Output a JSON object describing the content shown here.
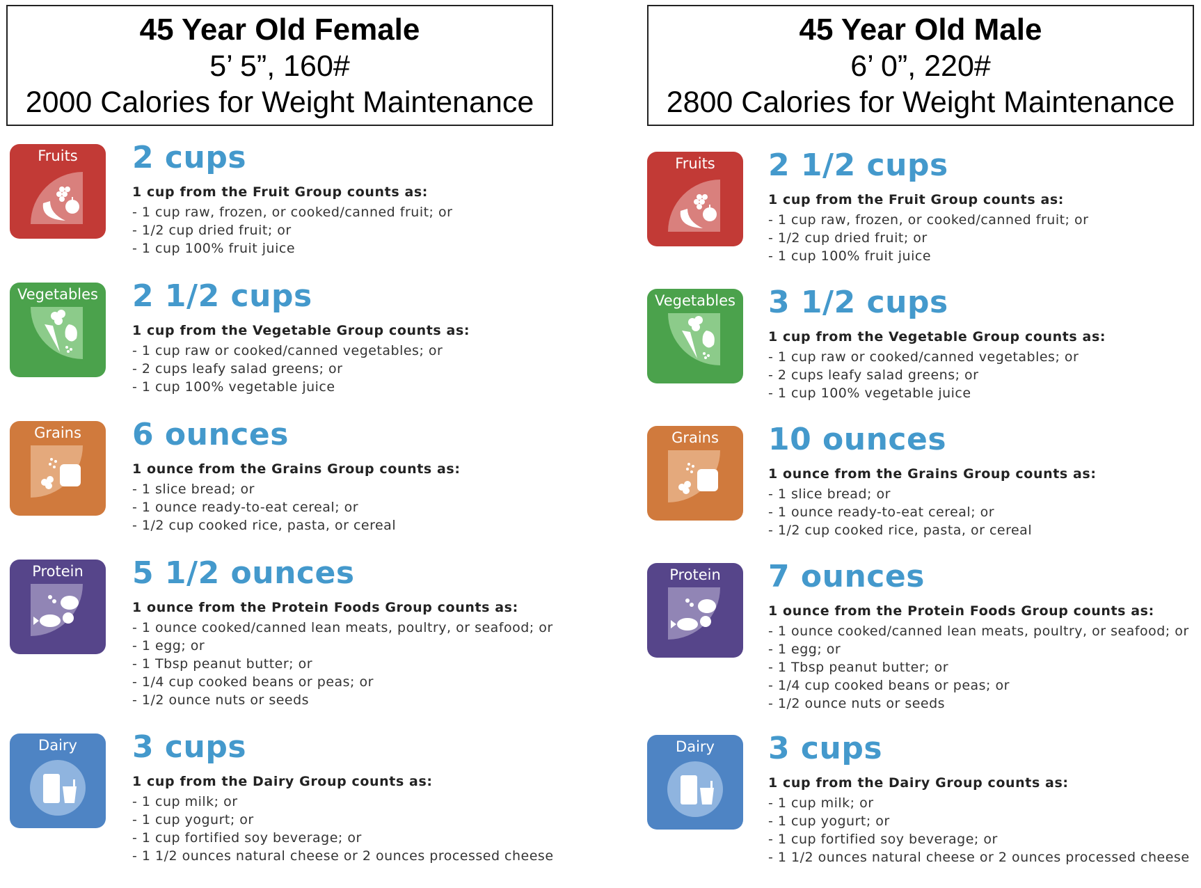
{
  "female": {
    "header": {
      "title": "45 Year Old Female",
      "stats": "5’ 5”, 160#",
      "calories": "2000 Calories for Weight Maintenance"
    },
    "groups": [
      {
        "label": "Fruits",
        "amount": "2 cups",
        "counts_as": "1 cup from the Fruit Group counts as:",
        "items": [
          "- 1 cup raw, frozen, or cooked/canned fruit; or",
          "- 1/2 cup dried fruit; or",
          "- 1 cup 100% fruit juice"
        ]
      },
      {
        "label": "Vegetables",
        "amount": "2 1/2 cups",
        "counts_as": "1 cup from the Vegetable Group counts as:",
        "items": [
          "- 1 cup raw or cooked/canned vegetables; or",
          "- 2 cups leafy salad greens; or",
          "- 1 cup 100% vegetable juice"
        ]
      },
      {
        "label": "Grains",
        "amount": "6 ounces",
        "counts_as": "1 ounce from the Grains Group counts as:",
        "items": [
          "- 1 slice bread; or",
          "- 1 ounce ready-to-eat cereal; or",
          "- 1/2 cup cooked rice, pasta, or cereal"
        ]
      },
      {
        "label": "Protein",
        "amount": "5 1/2 ounces",
        "counts_as": "1 ounce from the Protein Foods Group counts as:",
        "items": [
          "- 1 ounce cooked/canned lean meats, poultry, or seafood; or",
          "- 1 egg; or",
          "- 1 Tbsp peanut butter; or",
          "- 1/4 cup cooked beans or peas; or",
          "- 1/2 ounce nuts or seeds"
        ]
      },
      {
        "label": "Dairy",
        "amount": "3 cups",
        "counts_as": "1 cup from the Dairy Group counts as:",
        "items": [
          "- 1 cup milk; or",
          "- 1 cup yogurt; or",
          "- 1 cup fortified soy beverage; or",
          "- 1 1/2 ounces natural cheese or 2 ounces processed cheese"
        ]
      }
    ]
  },
  "male": {
    "header": {
      "title": "45 Year Old Male",
      "stats": "6’ 0”, 220#",
      "calories": "2800 Calories for Weight Maintenance"
    },
    "groups": [
      {
        "label": "Fruits",
        "amount": "2 1/2 cups",
        "counts_as": "1 cup from the Fruit Group counts as:",
        "items": [
          "- 1 cup raw, frozen, or cooked/canned fruit; or",
          "- 1/2 cup dried fruit; or",
          "- 1 cup 100% fruit juice"
        ]
      },
      {
        "label": "Vegetables",
        "amount": "3 1/2 cups",
        "counts_as": "1 cup from the Vegetable Group counts as:",
        "items": [
          "- 1 cup raw or cooked/canned vegetables; or",
          "- 2 cups leafy salad greens; or",
          "- 1 cup 100% vegetable juice"
        ]
      },
      {
        "label": "Grains",
        "amount": "10 ounces",
        "counts_as": "1 ounce from the Grains Group counts as:",
        "items": [
          "- 1 slice bread; or",
          "- 1 ounce ready-to-eat cereal; or",
          "- 1/2 cup cooked rice, pasta, or cereal"
        ]
      },
      {
        "label": "Protein",
        "amount": "7 ounces",
        "counts_as": "1 ounce from the Protein Foods Group counts as:",
        "items": [
          "- 1 ounce cooked/canned lean meats, poultry, or seafood; or",
          "- 1 egg; or",
          "- 1 Tbsp peanut butter; or",
          "- 1/4 cup cooked beans or peas; or",
          "- 1/2 ounce nuts or seeds"
        ]
      },
      {
        "label": "Dairy",
        "amount": "3 cups",
        "counts_as": "1 cup from the Dairy Group counts as:",
        "items": [
          "- 1 cup milk; or",
          "- 1 cup yogurt; or",
          "- 1 cup fortified soy beverage; or",
          "- 1 1/2 ounces natural cheese or 2 ounces processed cheese"
        ]
      }
    ]
  },
  "colors": {
    "fruits": "#c23a36",
    "vegetables": "#4ba24c",
    "grains": "#d07a3d",
    "protein": "#56458a",
    "dairy": "#4e84c4",
    "amount_text": "#4499cc"
  },
  "icons": [
    "fruit-icon",
    "vegetable-icon",
    "grain-icon",
    "protein-icon",
    "dairy-icon"
  ]
}
